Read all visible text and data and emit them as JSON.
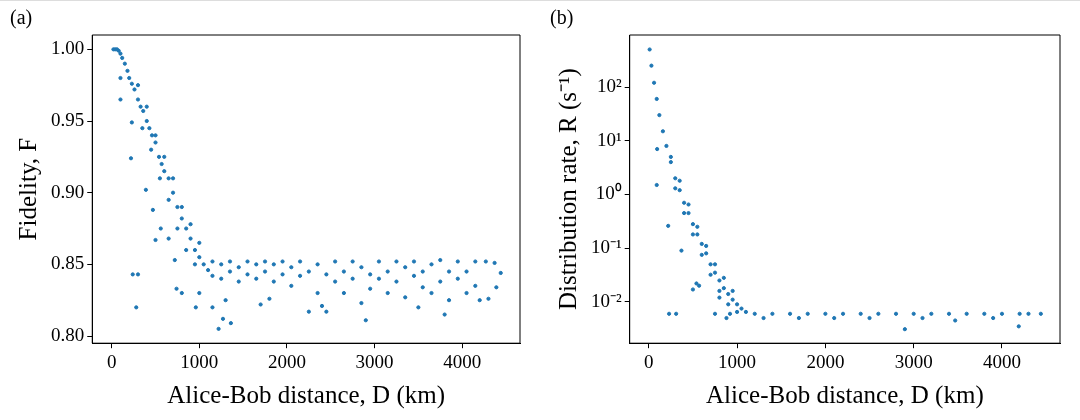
{
  "chart_data": [
    {
      "type": "scatter",
      "title": "(a)",
      "xlabel": "Alice-Bob distance, D (km)",
      "ylabel": "Fidelity, F",
      "grid": false,
      "legend": false,
      "marker": "circle",
      "xlim": [
        -222,
        4660
      ],
      "ylim": [
        0.795,
        1.01
      ],
      "xticks": [
        0,
        1000,
        2000,
        3000,
        4000
      ],
      "yticks": [
        {
          "value": 0.8,
          "label": "0.80"
        },
        {
          "value": 0.85,
          "label": "0.85"
        },
        {
          "value": 0.9,
          "label": "0.90"
        },
        {
          "value": 0.95,
          "label": "0.95"
        },
        {
          "value": 1.0,
          "label": "1.00"
        }
      ],
      "series": [
        {
          "color": "#1f77b4",
          "x": [
            20,
            40,
            60,
            80,
            100,
            120,
            150,
            180,
            200,
            230,
            260,
            300,
            330,
            360,
            400,
            430,
            460,
            500,
            540,
            570,
            600,
            650,
            700,
            750,
            800,
            850,
            900,
            950,
            1000,
            1050,
            1100,
            300,
            400,
            500,
            600,
            700,
            800,
            900,
            1000,
            350,
            450,
            550,
            650,
            750,
            850,
            950,
            100,
            100,
            220,
            230,
            240,
            300,
            280,
            390,
            470,
            500,
            560,
            650,
            720,
            740,
            800,
            960,
            1000,
            1150,
            1220,
            1270,
            1360,
            1300,
            1150,
            1150,
            1250,
            1250,
            1350,
            1350,
            1450,
            1450,
            1550,
            1550,
            1650,
            1650,
            1700,
            1750,
            1750,
            1800,
            1850,
            1850,
            1950,
            1950,
            2050,
            2050,
            2150,
            2150,
            2250,
            2250,
            2350,
            2350,
            2400,
            2450,
            2450,
            2550,
            2550,
            2650,
            2650,
            2750,
            2750,
            2850,
            2850,
            2900,
            2950,
            2950,
            3050,
            3050,
            3150,
            3150,
            3250,
            3250,
            3350,
            3350,
            3450,
            3450,
            3500,
            3550,
            3550,
            3650,
            3650,
            3750,
            3750,
            3800,
            3850,
            3850,
            3950,
            3950,
            4050,
            4050,
            4150,
            4150,
            4200,
            4270,
            4300,
            4370,
            4390,
            4440
          ],
          "values": [
            1.0,
            1.0,
            1.0,
            0.999,
            0.997,
            0.994,
            0.99,
            0.985,
            0.98,
            0.976,
            0.972,
            0.965,
            0.96,
            0.957,
            0.95,
            0.945,
            0.94,
            0.935,
            0.925,
            0.92,
            0.915,
            0.91,
            0.9,
            0.89,
            0.882,
            0.875,
            0.868,
            0.86,
            0.855,
            0.85,
            0.846,
            0.975,
            0.96,
            0.94,
            0.925,
            0.91,
            0.89,
            0.878,
            0.865,
            0.945,
            0.93,
            0.91,
            0.895,
            0.875,
            0.86,
            0.85,
            0.98,
            0.965,
            0.924,
            0.949,
            0.843,
            0.843,
            0.82,
            0.902,
            0.888,
            0.867,
            0.875,
            0.868,
            0.853,
            0.833,
            0.83,
            0.82,
            0.83,
            0.82,
            0.805,
            0.812,
            0.809,
            0.825,
            0.852,
            0.842,
            0.85,
            0.84,
            0.852,
            0.845,
            0.848,
            0.838,
            0.852,
            0.843,
            0.85,
            0.84,
            0.822,
            0.852,
            0.845,
            0.826,
            0.85,
            0.838,
            0.852,
            0.843,
            0.848,
            0.835,
            0.852,
            0.842,
            0.845,
            0.817,
            0.85,
            0.83,
            0.821,
            0.843,
            0.817,
            0.852,
            0.838,
            0.845,
            0.83,
            0.852,
            0.84,
            0.848,
            0.823,
            0.811,
            0.843,
            0.833,
            0.852,
            0.84,
            0.845,
            0.83,
            0.852,
            0.838,
            0.848,
            0.827,
            0.852,
            0.842,
            0.82,
            0.845,
            0.834,
            0.85,
            0.83,
            0.853,
            0.838,
            0.815,
            0.845,
            0.825,
            0.852,
            0.84,
            0.845,
            0.83,
            0.852,
            0.835,
            0.825,
            0.852,
            0.826,
            0.851,
            0.834,
            0.844
          ]
        }
      ]
    },
    {
      "type": "scatter",
      "title": "(b)",
      "xlabel": "Alice-Bob distance, D (km)",
      "ylabel": "Distribution rate, R (s⁻¹)",
      "grid": false,
      "legend": false,
      "marker": "circle",
      "log": "y",
      "xlim": [
        -216,
        4657
      ],
      "ylim": [
        0.0017,
        930
      ],
      "xticks": [
        0,
        1000,
        2000,
        3000,
        4000
      ],
      "yticks": [
        {
          "value": 0.01,
          "label": "10⁻²"
        },
        {
          "value": 0.1,
          "label": "10⁻¹"
        },
        {
          "value": 1,
          "label": "10⁰"
        },
        {
          "value": 10,
          "label": "10¹"
        },
        {
          "value": 100,
          "label": "10²"
        }
      ],
      "series": [
        {
          "color": "#1f77b4",
          "x": [
            10,
            30,
            60,
            90,
            120,
            160,
            200,
            250,
            300,
            350,
            400,
            450,
            500,
            550,
            600,
            650,
            700,
            750,
            800,
            850,
            900,
            950,
            1000,
            1050,
            1100,
            250,
            350,
            450,
            550,
            650,
            750,
            850,
            950,
            300,
            400,
            500,
            600,
            700,
            800,
            900,
            1000,
            90,
            95,
            220,
            230,
            310,
            370,
            500,
            540,
            570,
            750,
            800,
            880,
            920,
            1200,
            1400,
            1600,
            1800,
            2000,
            2200,
            2400,
            2600,
            2800,
            3000,
            3200,
            3400,
            3600,
            3800,
            4000,
            4200,
            4300,
            4440,
            1300,
            1700,
            2100,
            2500,
            2900,
            3100,
            3470,
            3900,
            4190
          ],
          "values": [
            500,
            250,
            120,
            60,
            30,
            15,
            8,
            4,
            2,
            1.2,
            0.7,
            0.45,
            0.28,
            0.18,
            0.12,
            0.08,
            0.05,
            0.035,
            0.025,
            0.018,
            0.014,
            0.011,
            0.009,
            0.0075,
            0.0065,
            5,
            1.8,
            0.65,
            0.25,
            0.11,
            0.05,
            0.028,
            0.016,
            1.3,
            0.45,
            0.18,
            0.075,
            0.032,
            0.016,
            0.009,
            0.0065,
            1.5,
            7,
            0.26,
            0.006,
            0.006,
            0.09,
            0.017,
            0.022,
            0.02,
            0.006,
            0.012,
            0.005,
            0.006,
            0.006,
            0.006,
            0.006,
            0.006,
            0.006,
            0.006,
            0.006,
            0.006,
            0.006,
            0.006,
            0.006,
            0.006,
            0.006,
            0.006,
            0.006,
            0.006,
            0.006,
            0.006,
            0.005,
            0.005,
            0.005,
            0.005,
            0.0031,
            0.005,
            0.0045,
            0.005,
            0.0035
          ]
        }
      ]
    }
  ]
}
